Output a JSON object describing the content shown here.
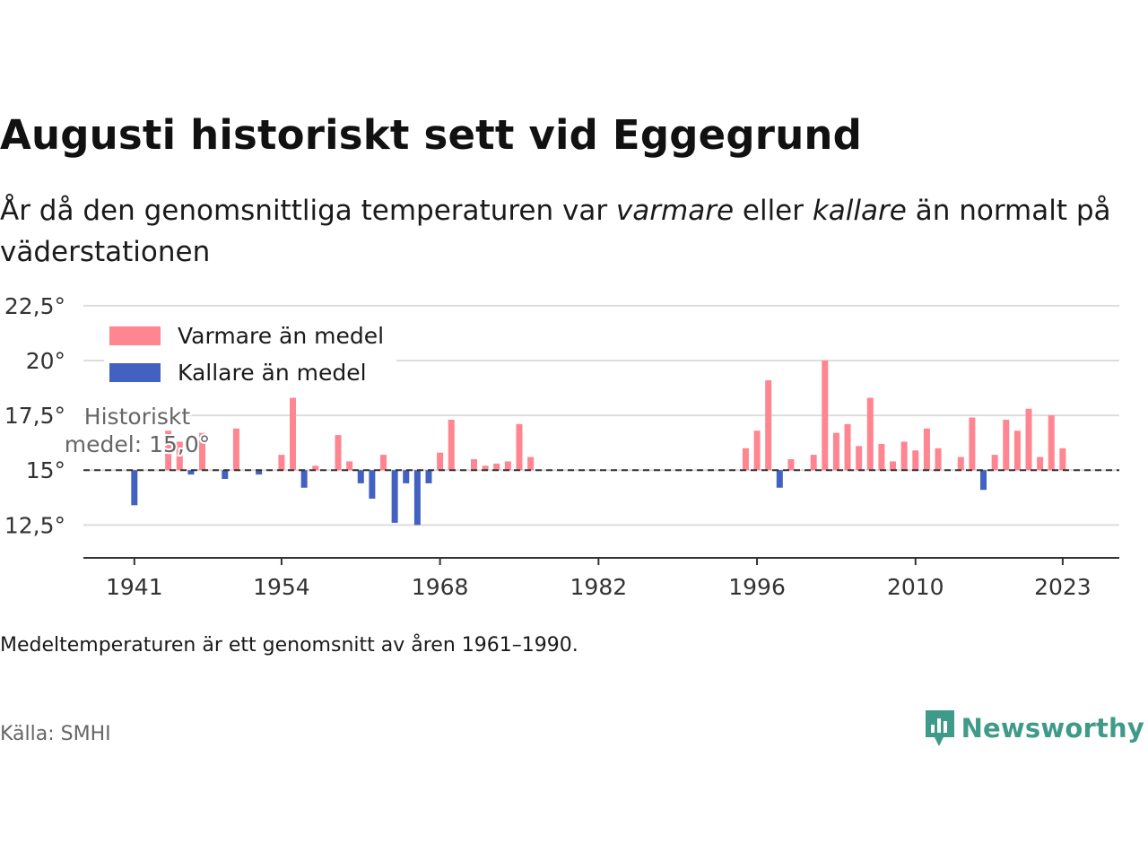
{
  "title_block": {
    "title": "Augusti historiskt sett vid Eggegrund",
    "subtitle_parts": [
      "År då den genomsnittliga temperaturen var ",
      "varmare",
      " eller ",
      "kallare",
      " än normalt på väderstationen"
    ]
  },
  "colors": {
    "warm": "#ff8591",
    "cold": "#4261c0",
    "baseline": "#333333",
    "grid": "#dddddd",
    "brand": "#3f9a8a"
  },
  "chart_data": {
    "type": "bar",
    "baseline": 15.0,
    "ylim": [
      11,
      22.7
    ],
    "xlim": [
      1936.5,
      2028
    ],
    "y_ticks": [
      12.5,
      15,
      17.5,
      20,
      22.5
    ],
    "y_tick_labels": [
      "12,5°",
      "15°",
      "17,5°",
      "20°",
      "22,5°"
    ],
    "x_ticks": [
      1941,
      1954,
      1968,
      1982,
      1996,
      2010,
      2023
    ],
    "x_tick_labels": [
      "1941",
      "1954",
      "1968",
      "1982",
      "1996",
      "2010",
      "2023"
    ],
    "baseline_label": [
      "Historiskt",
      "medel: 15,0°"
    ],
    "legend_position": "top-left",
    "series": [
      {
        "name": "Varmare än medel",
        "color": "#ff8591"
      },
      {
        "name": "Kallare än medel",
        "color": "#4261c0"
      }
    ],
    "years": [
      1941,
      1944,
      1945,
      1946,
      1947,
      1949,
      1950,
      1952,
      1954,
      1955,
      1956,
      1957,
      1959,
      1960,
      1961,
      1962,
      1963,
      1964,
      1965,
      1966,
      1967,
      1968,
      1969,
      1971,
      1972,
      1973,
      1974,
      1975,
      1976,
      1995,
      1996,
      1997,
      1998,
      1999,
      2001,
      2002,
      2003,
      2004,
      2005,
      2006,
      2007,
      2008,
      2009,
      2010,
      2011,
      2012,
      2014,
      2015,
      2016,
      2017,
      2018,
      2019,
      2020,
      2021,
      2022,
      2023
    ],
    "temps": [
      13.4,
      16.8,
      16.3,
      14.8,
      16.7,
      14.6,
      16.9,
      14.8,
      15.7,
      18.3,
      14.2,
      15.2,
      16.6,
      15.4,
      14.4,
      13.7,
      15.7,
      12.6,
      14.4,
      12.5,
      14.4,
      15.8,
      17.3,
      15.5,
      15.2,
      15.3,
      15.4,
      17.1,
      15.6,
      16.0,
      16.8,
      19.1,
      14.2,
      15.5,
      15.7,
      20.0,
      16.7,
      17.1,
      16.1,
      18.3,
      16.2,
      15.4,
      16.3,
      15.9,
      16.9,
      16.0,
      15.6,
      17.4,
      14.1,
      15.7,
      17.3,
      16.8,
      17.8,
      15.6,
      17.5,
      16.0
    ]
  },
  "footer": {
    "note": "Medeltemperaturen är ett genomsnitt av åren 1961–1990.",
    "source": "Källa: SMHI",
    "brand": "Newsworthy"
  }
}
